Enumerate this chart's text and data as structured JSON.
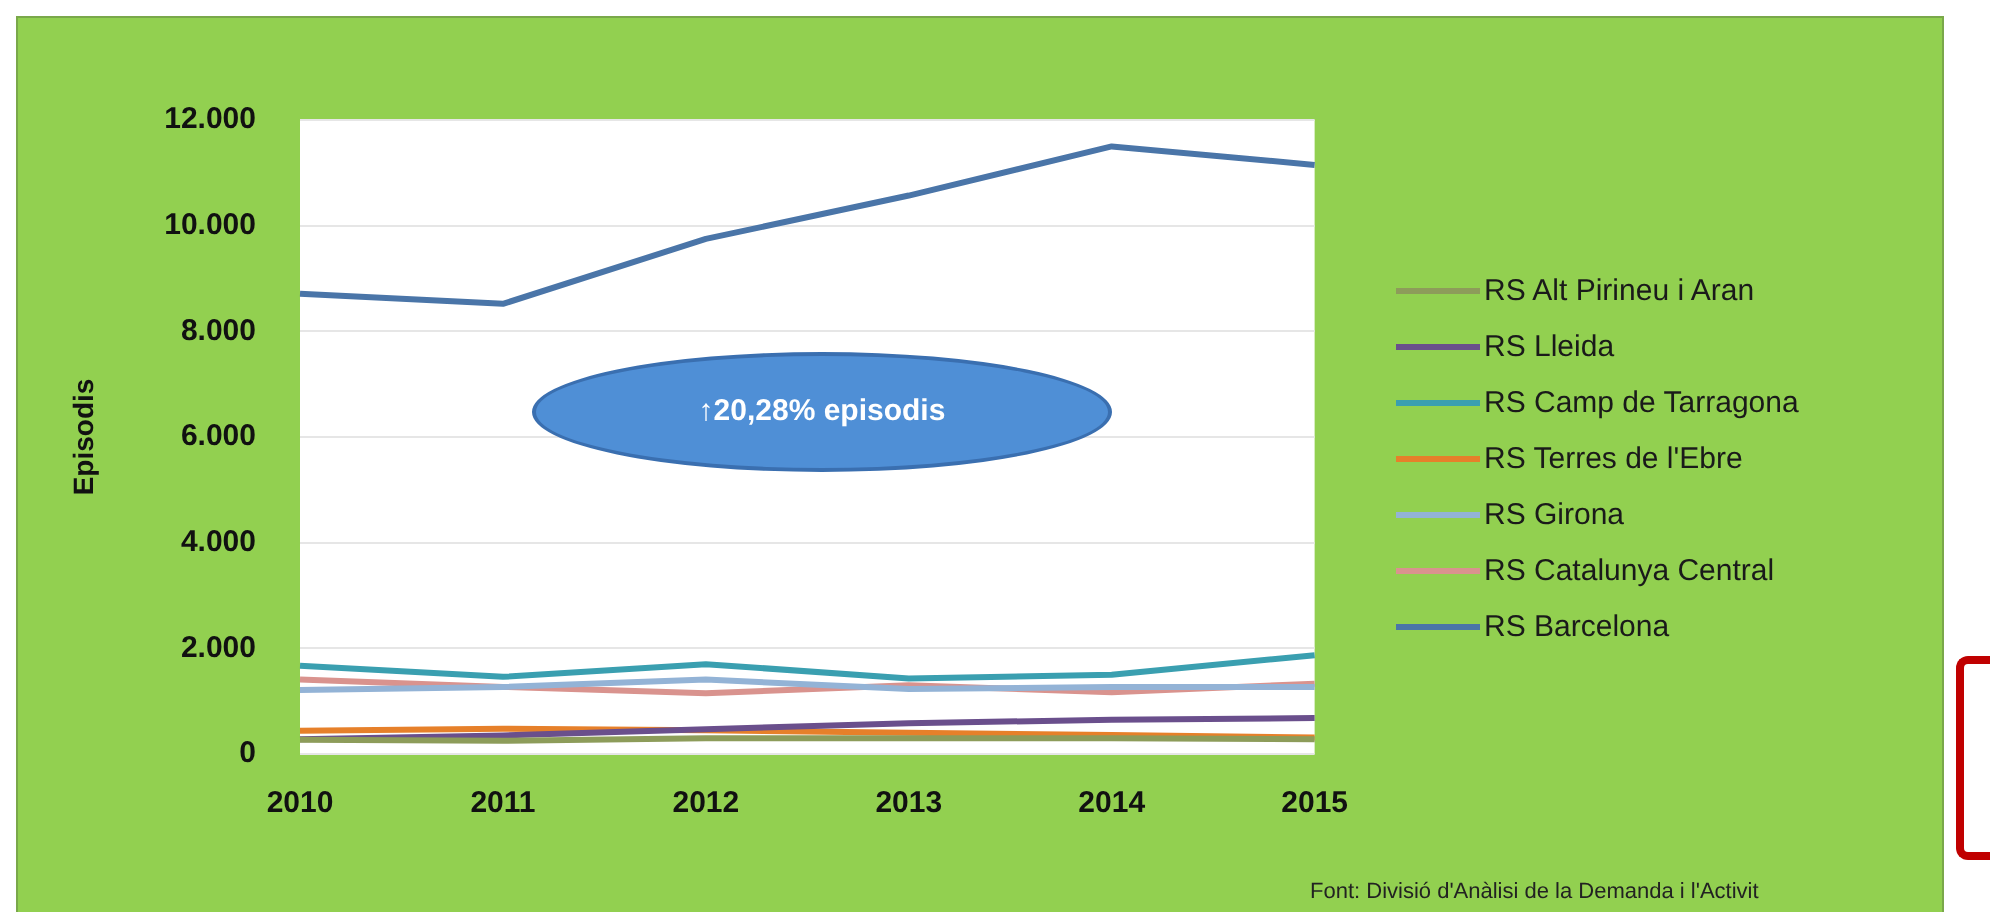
{
  "chart_data": {
    "type": "line",
    "ylabel": "Episodis",
    "categories": [
      "2010",
      "2011",
      "2012",
      "2013",
      "2014",
      "2015"
    ],
    "series": [
      {
        "name": "RS Alt Pirineu i Aran",
        "color": "#8d9c5a",
        "values": [
          270,
          250,
          300,
          300,
          300,
          280
        ]
      },
      {
        "name": "RS Lleida",
        "color": "#6a4f8c",
        "values": [
          280,
          350,
          470,
          580,
          650,
          680
        ]
      },
      {
        "name": "RS Camp de Tarragona",
        "color": "#3a9fb0",
        "values": [
          1670,
          1460,
          1700,
          1430,
          1500,
          1870
        ]
      },
      {
        "name": "RS Terres de l'Ebre",
        "color": "#e6802a",
        "values": [
          440,
          480,
          450,
          400,
          360,
          310
        ]
      },
      {
        "name": "RS Girona",
        "color": "#93b3d6",
        "values": [
          1210,
          1270,
          1410,
          1230,
          1270,
          1270
        ]
      },
      {
        "name": "RS Catalunya Central",
        "color": "#d9938e",
        "values": [
          1410,
          1270,
          1150,
          1300,
          1170,
          1330
        ]
      },
      {
        "name": "RS Barcelona",
        "color": "#4a75a8",
        "values": [
          8710,
          8520,
          9750,
          10570,
          11500,
          11150
        ]
      }
    ],
    "ylim": [
      0,
      12000
    ],
    "yticks": [
      {
        "value": 0,
        "label": "0"
      },
      {
        "value": 2000,
        "label": "2.000"
      },
      {
        "value": 4000,
        "label": "4.000"
      },
      {
        "value": 6000,
        "label": "6.000"
      },
      {
        "value": 8000,
        "label": "8.000"
      },
      {
        "value": 10000,
        "label": "10.000"
      },
      {
        "value": 12000,
        "label": "12.000"
      }
    ],
    "grid": "y",
    "legend": "right",
    "marker": "none",
    "line_style": "solid",
    "annotations": [
      "↑20,28% episodis",
      "Font: Divisió d'Anàlisi de la Demanda i l'Activit"
    ]
  }
}
